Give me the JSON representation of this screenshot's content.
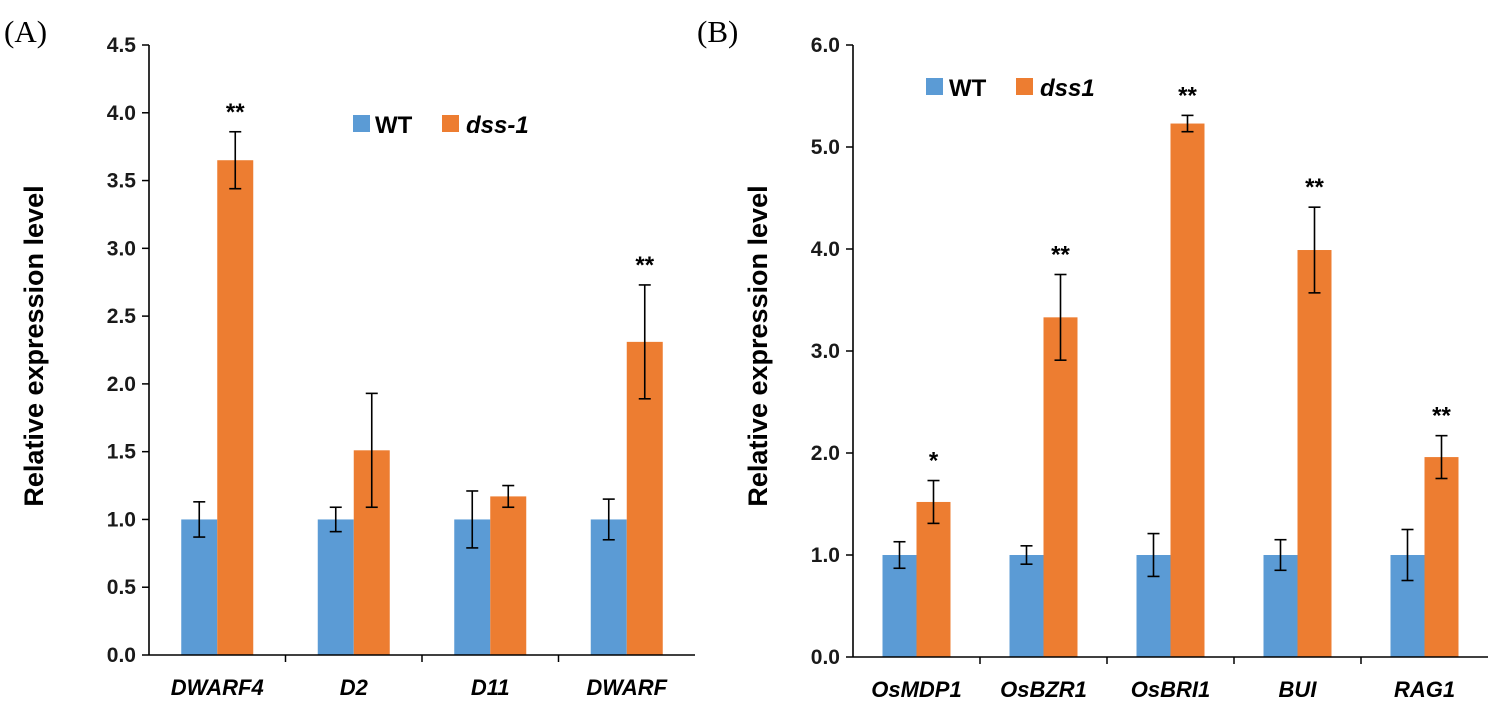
{
  "colors": {
    "wt": "#5b9bd5",
    "mutant": "#ed7d31",
    "axis": "#000000"
  },
  "chart_data": [
    {
      "type": "bar",
      "panel_label": "(A)",
      "ylabel": "Relative expression level",
      "xlabel": "",
      "ylim": [
        0,
        4.5
      ],
      "ytick_step": 0.5,
      "yticks": [
        "0.0",
        "0.5",
        "1.0",
        "1.5",
        "2.0",
        "2.5",
        "3.0",
        "3.5",
        "4.0",
        "4.5"
      ],
      "categories": [
        "DWARF4",
        "D2",
        "D11",
        "DWARF"
      ],
      "series": [
        {
          "name": "WT",
          "values": [
            1.0,
            1.0,
            1.0,
            1.0
          ],
          "errors": [
            0.13,
            0.09,
            0.21,
            0.15
          ]
        },
        {
          "name": "dss-1",
          "values": [
            3.65,
            1.51,
            1.17,
            2.31
          ],
          "errors": [
            0.21,
            0.42,
            0.08,
            0.42
          ]
        }
      ],
      "significance": [
        "**",
        "",
        "",
        "**"
      ],
      "legend": "top-center"
    },
    {
      "type": "bar",
      "panel_label": "(B)",
      "ylabel": "Relative expression level",
      "xlabel": "",
      "ylim": [
        0,
        6.0
      ],
      "ytick_step": 1.0,
      "yticks": [
        "0.0",
        "1.0",
        "2.0",
        "3.0",
        "4.0",
        "5.0",
        "6.0"
      ],
      "categories": [
        "OsMDP1",
        "OsBZR1",
        "OsBRI1",
        "BUI",
        "RAG1"
      ],
      "series": [
        {
          "name": "WT",
          "values": [
            1.0,
            1.0,
            1.0,
            1.0,
            1.0
          ],
          "errors": [
            0.13,
            0.09,
            0.21,
            0.15,
            0.25
          ]
        },
        {
          "name": "dss1",
          "values": [
            1.52,
            3.33,
            5.23,
            3.99,
            1.96
          ],
          "errors": [
            0.21,
            0.42,
            0.08,
            0.42,
            0.21
          ]
        }
      ],
      "significance": [
        "*",
        "**",
        "**",
        "**",
        "**"
      ],
      "legend": "top-left"
    }
  ]
}
